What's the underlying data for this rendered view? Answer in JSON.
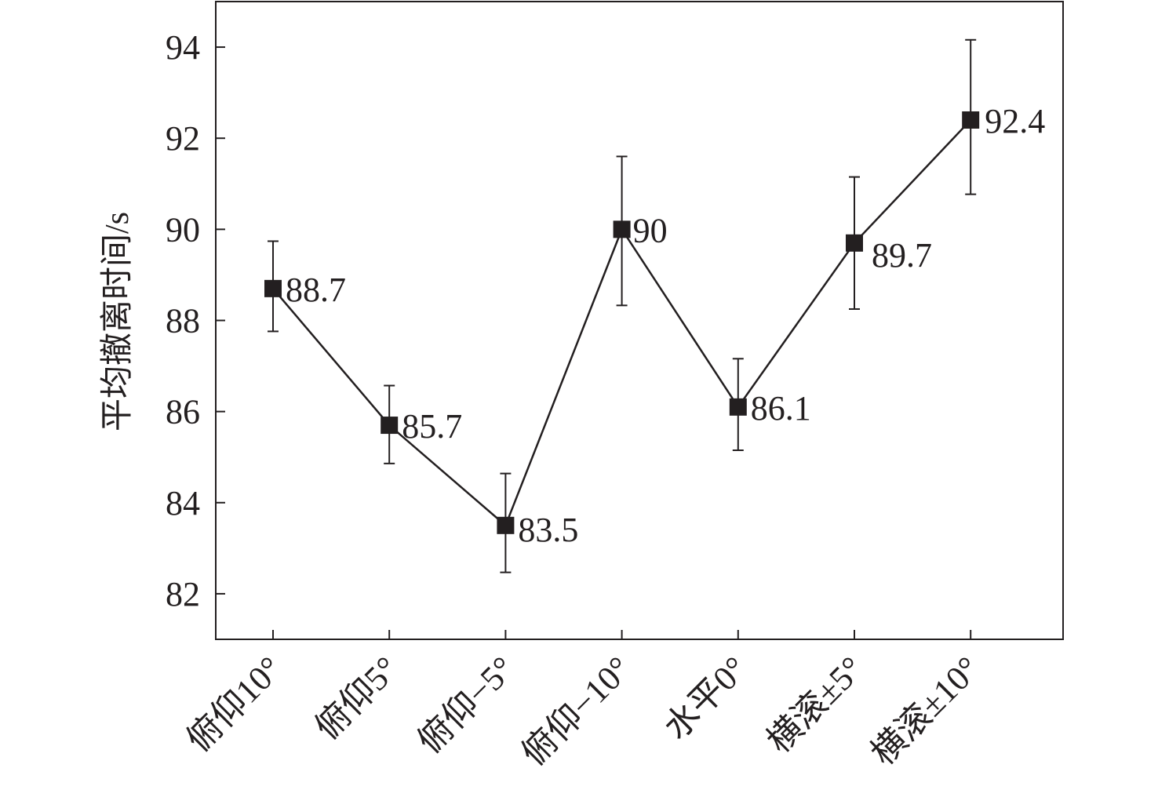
{
  "chart_data": {
    "type": "line",
    "title": "",
    "xlabel": "",
    "ylabel": "平均撤离时间/s",
    "categories": [
      "俯仰10°",
      "俯仰5°",
      "俯仰−5°",
      "俯仰−10°",
      "水平0°",
      "横滚±5°",
      "横滚±10°"
    ],
    "values": [
      88.7,
      85.7,
      83.5,
      90,
      86.1,
      89.7,
      92.4
    ],
    "data_labels": [
      "88.7",
      "85.7",
      "83.5",
      "90",
      "86.1",
      "89.7",
      "92.4"
    ],
    "error_low": [
      87.76,
      84.86,
      82.47,
      88.33,
      85.15,
      88.25,
      90.77
    ],
    "error_high": [
      89.74,
      86.57,
      84.64,
      91.6,
      87.16,
      91.15,
      94.16
    ],
    "yticks": [
      82,
      84,
      86,
      88,
      90,
      92,
      94
    ],
    "ylim": [
      81,
      95
    ],
    "marker": "square",
    "color": "#231f20",
    "grid": false,
    "legend": "none"
  }
}
